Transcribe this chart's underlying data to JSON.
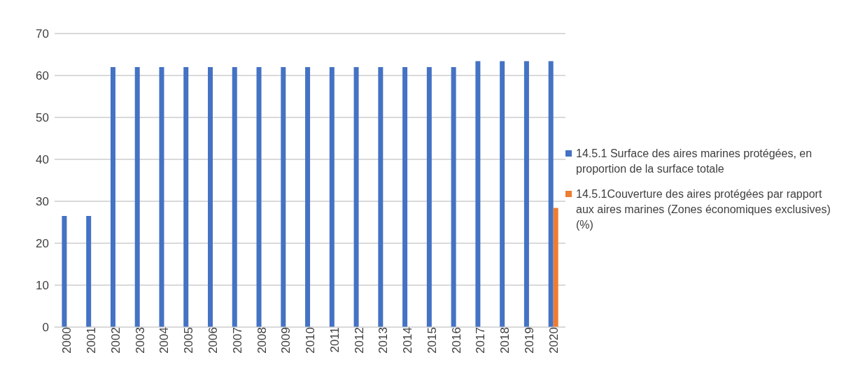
{
  "chart_data": {
    "type": "bar",
    "categories": [
      "2000",
      "2001",
      "2002",
      "2003",
      "2004",
      "2005",
      "2006",
      "2007",
      "2008",
      "2009",
      "2010",
      "2011",
      "2012",
      "2013",
      "2014",
      "2015",
      "2016",
      "2017",
      "2018",
      "2019",
      "2020"
    ],
    "series": [
      {
        "name": "14.5.1 Surface des aires marines protégées, en proportion de la surface totale",
        "color": "#4472c4",
        "values": [
          26.5,
          26.5,
          62,
          62,
          62,
          62,
          62,
          62,
          62,
          62,
          62,
          62,
          62,
          62,
          62,
          62,
          62,
          63.4,
          63.4,
          63.4,
          63.4
        ]
      },
      {
        "name": "14.5.1Couverture des aires protégées par rapport aux aires marines (Zones économiques exclusives) (%)",
        "color": "#ed7d31",
        "values": [
          null,
          null,
          null,
          null,
          null,
          null,
          null,
          null,
          null,
          null,
          null,
          null,
          null,
          null,
          null,
          null,
          null,
          null,
          null,
          null,
          28.4
        ]
      }
    ],
    "ylim": [
      0,
      70
    ],
    "yticks": [
      0,
      10,
      20,
      30,
      40,
      50,
      60,
      70
    ],
    "grid": "y",
    "legend": "right"
  }
}
